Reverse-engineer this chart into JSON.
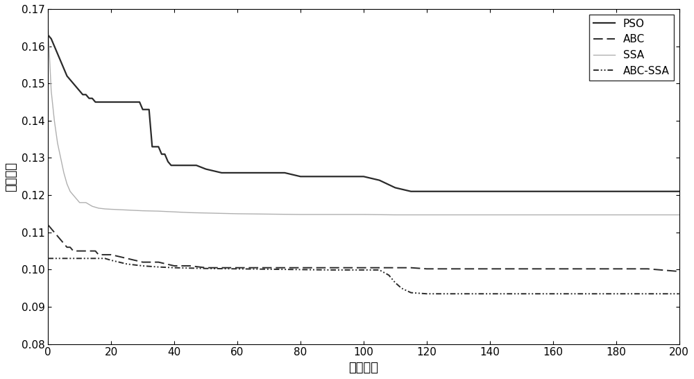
{
  "title": "",
  "xlabel": "进化代数",
  "ylabel": "适应度値",
  "xlim": [
    0,
    200
  ],
  "ylim": [
    0.08,
    0.17
  ],
  "yticks": [
    0.08,
    0.09,
    0.1,
    0.11,
    0.12,
    0.13,
    0.14,
    0.15,
    0.16,
    0.17
  ],
  "xticks": [
    0,
    20,
    40,
    60,
    80,
    100,
    120,
    140,
    160,
    180,
    200
  ],
  "background_color": "#ffffff",
  "PSO_x": [
    0,
    1,
    2,
    3,
    4,
    5,
    6,
    7,
    8,
    9,
    10,
    11,
    12,
    13,
    14,
    15,
    16,
    17,
    18,
    19,
    20,
    21,
    22,
    23,
    24,
    25,
    26,
    27,
    28,
    29,
    30,
    31,
    32,
    33,
    34,
    35,
    36,
    37,
    38,
    39,
    40,
    41,
    42,
    43,
    44,
    45,
    46,
    47,
    50,
    55,
    60,
    65,
    70,
    75,
    80,
    85,
    90,
    95,
    100,
    105,
    110,
    115,
    120,
    130,
    140,
    150,
    160,
    170,
    180,
    190,
    200
  ],
  "PSO_y": [
    0.163,
    0.162,
    0.16,
    0.158,
    0.156,
    0.154,
    0.152,
    0.151,
    0.15,
    0.149,
    0.148,
    0.147,
    0.147,
    0.146,
    0.146,
    0.145,
    0.145,
    0.145,
    0.145,
    0.145,
    0.145,
    0.145,
    0.145,
    0.145,
    0.145,
    0.145,
    0.145,
    0.145,
    0.145,
    0.145,
    0.143,
    0.143,
    0.143,
    0.133,
    0.133,
    0.133,
    0.131,
    0.131,
    0.129,
    0.128,
    0.128,
    0.128,
    0.128,
    0.128,
    0.128,
    0.128,
    0.128,
    0.128,
    0.127,
    0.126,
    0.126,
    0.126,
    0.126,
    0.126,
    0.125,
    0.125,
    0.125,
    0.125,
    0.125,
    0.124,
    0.122,
    0.121,
    0.121,
    0.121,
    0.121,
    0.121,
    0.121,
    0.121,
    0.121,
    0.121,
    0.121
  ],
  "ABC_x": [
    0,
    1,
    2,
    3,
    4,
    5,
    6,
    7,
    8,
    9,
    10,
    11,
    12,
    13,
    14,
    15,
    16,
    17,
    18,
    19,
    20,
    25,
    30,
    35,
    40,
    45,
    50,
    55,
    60,
    65,
    70,
    80,
    90,
    100,
    105,
    110,
    115,
    120,
    130,
    140,
    150,
    160,
    170,
    180,
    190,
    200
  ],
  "ABC_y": [
    0.112,
    0.111,
    0.11,
    0.109,
    0.108,
    0.107,
    0.106,
    0.106,
    0.105,
    0.105,
    0.105,
    0.105,
    0.105,
    0.105,
    0.105,
    0.105,
    0.104,
    0.104,
    0.104,
    0.104,
    0.104,
    0.103,
    0.102,
    0.102,
    0.101,
    0.101,
    0.1005,
    0.1005,
    0.1005,
    0.1005,
    0.1005,
    0.1005,
    0.1005,
    0.1005,
    0.1005,
    0.1005,
    0.1005,
    0.1002,
    0.1002,
    0.1002,
    0.1002,
    0.1002,
    0.1002,
    0.1002,
    0.1002,
    0.0995
  ],
  "SSA_x": [
    0,
    1,
    2,
    3,
    4,
    5,
    6,
    7,
    8,
    9,
    10,
    12,
    14,
    16,
    18,
    20,
    25,
    30,
    35,
    40,
    45,
    50,
    60,
    70,
    80,
    90,
    100,
    110,
    115,
    120,
    130,
    140,
    150,
    160,
    170,
    180,
    190,
    200
  ],
  "SSA_y": [
    0.165,
    0.148,
    0.14,
    0.134,
    0.13,
    0.126,
    0.123,
    0.121,
    0.12,
    0.119,
    0.118,
    0.118,
    0.117,
    0.1165,
    0.1163,
    0.1162,
    0.116,
    0.1158,
    0.1157,
    0.1155,
    0.1153,
    0.1152,
    0.115,
    0.1149,
    0.1148,
    0.1148,
    0.1148,
    0.1147,
    0.1147,
    0.1147,
    0.1147,
    0.1147,
    0.1147,
    0.1147,
    0.1147,
    0.1147,
    0.1147,
    0.1147
  ],
  "ABCSSA_x": [
    0,
    1,
    2,
    3,
    4,
    5,
    6,
    7,
    8,
    9,
    10,
    11,
    12,
    15,
    18,
    20,
    25,
    30,
    35,
    40,
    50,
    60,
    70,
    80,
    90,
    100,
    105,
    108,
    110,
    112,
    115,
    120,
    130,
    140,
    150,
    160,
    170,
    180,
    190,
    200
  ],
  "ABCSSA_y": [
    0.103,
    0.103,
    0.103,
    0.103,
    0.103,
    0.103,
    0.103,
    0.103,
    0.103,
    0.103,
    0.103,
    0.103,
    0.103,
    0.103,
    0.103,
    0.1025,
    0.1015,
    0.101,
    0.1007,
    0.1005,
    0.1003,
    0.1002,
    0.1001,
    0.1,
    0.0999,
    0.0999,
    0.0999,
    0.0985,
    0.0965,
    0.095,
    0.0938,
    0.0935,
    0.0935,
    0.0935,
    0.0935,
    0.0935,
    0.0935,
    0.0935,
    0.0935,
    0.0935
  ],
  "legend_loc": "upper right",
  "fontsize_tick": 11,
  "fontsize_label": 13,
  "fontsize_legend": 11,
  "line_color_dark": "#2a2a2a",
  "line_color_gray": "#b0b0b0"
}
